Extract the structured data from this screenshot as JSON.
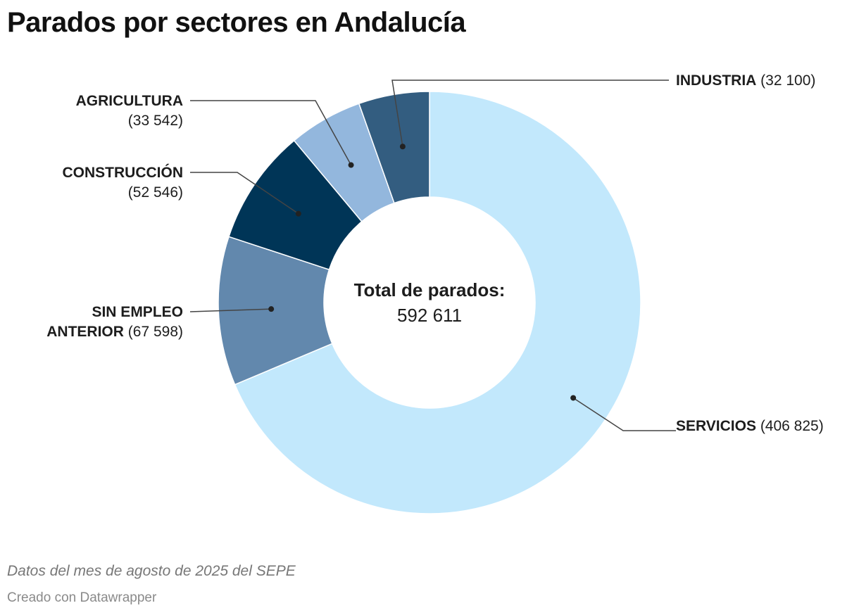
{
  "title": "Parados por sectores en Andalucía",
  "chart_data": {
    "type": "pie",
    "variant": "donut",
    "title": "Parados por sectores en Andalucía",
    "categories": [
      "SERVICIOS",
      "SIN EMPLEO ANTERIOR",
      "CONSTRUCCIÓN",
      "AGRICULTURA",
      "INDUSTRIA"
    ],
    "values": [
      406825,
      67598,
      52546,
      33542,
      32100
    ],
    "value_labels": [
      "(406 825)",
      "(67 598)",
      "(52 546)",
      "(33 542)",
      "(32 100)"
    ],
    "colors": [
      "#c2e8fc",
      "#6288ad",
      "#003557",
      "#93b7dd",
      "#335d80"
    ],
    "center_label": "Total de parados:",
    "center_value": "592 611"
  },
  "footer": {
    "note": "Datos del mes de agosto de 2025 del SEPE",
    "credit": "Creado con Datawrapper"
  }
}
